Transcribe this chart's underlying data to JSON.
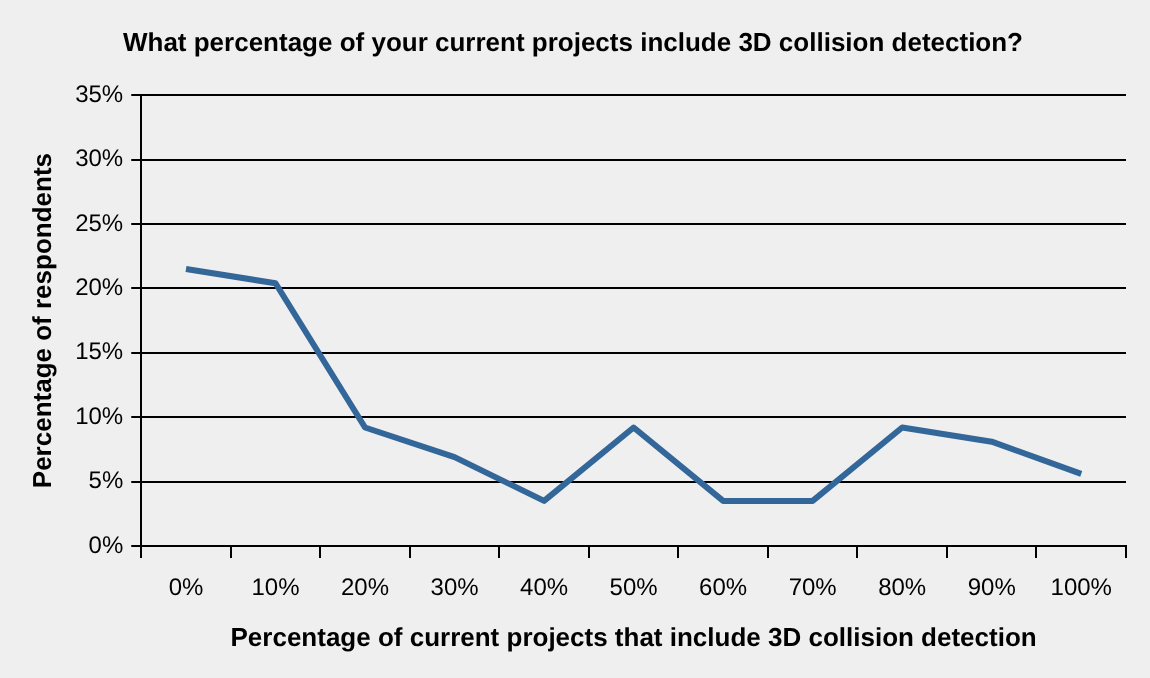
{
  "chart_data": {
    "type": "line",
    "title": "What percentage of your current projects include 3D collision detection?",
    "xlabel": "Percentage of current projects that include 3D collision detection",
    "ylabel": "Percentage of respondents",
    "categories": [
      "0%",
      "10%",
      "20%",
      "30%",
      "40%",
      "50%",
      "60%",
      "70%",
      "80%",
      "90%",
      "100%"
    ],
    "series": [
      {
        "color": "#336699",
        "values": [
          21.5,
          20.4,
          9.2,
          6.9,
          3.5,
          9.2,
          3.5,
          3.5,
          9.2,
          8.1,
          5.6
        ]
      }
    ],
    "ylim": [
      0,
      35
    ],
    "yticks": [
      {
        "value": 0,
        "label": "0%"
      },
      {
        "value": 5,
        "label": "5%"
      },
      {
        "value": 10,
        "label": "10%"
      },
      {
        "value": 15,
        "label": "15%"
      },
      {
        "value": 20,
        "label": "20%"
      },
      {
        "value": 25,
        "label": "25%"
      },
      {
        "value": 30,
        "label": "30%"
      },
      {
        "value": 35,
        "label": "35%"
      }
    ],
    "grid": "y",
    "legend": false,
    "marker": "none",
    "line_style": "solid"
  }
}
